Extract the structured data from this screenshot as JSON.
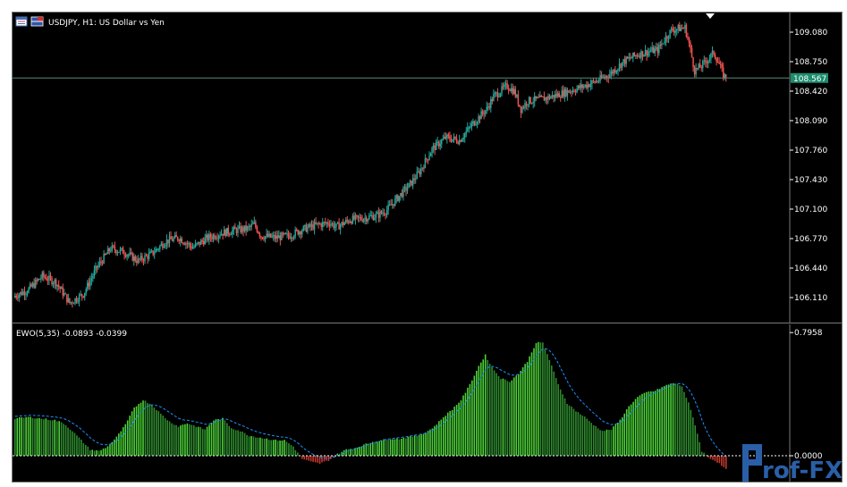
{
  "main_chart": {
    "symbol_label": "USDJPY, H1:  US Dollar vs Yen",
    "price_axis": [
      {
        "value": 109.08,
        "label": "109.080"
      },
      {
        "value": 108.75,
        "label": "108.750"
      },
      {
        "value": 108.42,
        "label": "108.420"
      },
      {
        "value": 108.09,
        "label": "108.090"
      },
      {
        "value": 107.76,
        "label": "107.760"
      },
      {
        "value": 107.43,
        "label": "107.430"
      },
      {
        "value": 107.1,
        "label": "107.100"
      },
      {
        "value": 106.77,
        "label": "106.770"
      },
      {
        "value": 106.44,
        "label": "106.440"
      },
      {
        "value": 106.11,
        "label": "106.110"
      }
    ],
    "price_range": [
      105.86,
      109.26
    ],
    "current_price": {
      "value": 108.567,
      "label": "108.567",
      "color": "#1e8c6e"
    },
    "bull_color": "#26a69a",
    "bear_color": "#ef5350",
    "close_anchors": [
      [
        0,
        106.13
      ],
      [
        10,
        106.2
      ],
      [
        20,
        106.35
      ],
      [
        30,
        106.28
      ],
      [
        40,
        106.05
      ],
      [
        50,
        106.15
      ],
      [
        60,
        106.45
      ],
      [
        70,
        106.66
      ],
      [
        80,
        106.62
      ],
      [
        90,
        106.52
      ],
      [
        100,
        106.6
      ],
      [
        110,
        106.74
      ],
      [
        120,
        106.78
      ],
      [
        130,
        106.67
      ],
      [
        140,
        106.77
      ],
      [
        150,
        106.83
      ],
      [
        160,
        106.86
      ],
      [
        170,
        106.88
      ],
      [
        175,
        106.93
      ],
      [
        180,
        106.8
      ],
      [
        190,
        106.78
      ],
      [
        200,
        106.8
      ],
      [
        210,
        106.87
      ],
      [
        220,
        106.92
      ],
      [
        230,
        106.95
      ],
      [
        235,
        106.9
      ],
      [
        245,
        106.98
      ],
      [
        255,
        107.0
      ],
      [
        265,
        107.03
      ],
      [
        272,
        107.09
      ],
      [
        280,
        107.23
      ],
      [
        288,
        107.36
      ],
      [
        296,
        107.52
      ],
      [
        305,
        107.77
      ],
      [
        315,
        107.9
      ],
      [
        325,
        107.87
      ],
      [
        335,
        108.06
      ],
      [
        345,
        108.22
      ],
      [
        350,
        108.36
      ],
      [
        355,
        108.42
      ],
      [
        360,
        108.48
      ],
      [
        365,
        108.42
      ],
      [
        370,
        108.22
      ],
      [
        375,
        108.31
      ],
      [
        385,
        108.33
      ],
      [
        395,
        108.37
      ],
      [
        405,
        108.42
      ],
      [
        415,
        108.47
      ],
      [
        425,
        108.53
      ],
      [
        435,
        108.61
      ],
      [
        445,
        108.75
      ],
      [
        455,
        108.83
      ],
      [
        465,
        108.87
      ],
      [
        470,
        108.88
      ],
      [
        475,
        109.0
      ],
      [
        480,
        109.1
      ],
      [
        485,
        109.12
      ],
      [
        490,
        109.13
      ],
      [
        493,
        108.95
      ],
      [
        497,
        108.65
      ],
      [
        502,
        108.7
      ],
      [
        507,
        108.78
      ],
      [
        511,
        108.85
      ],
      [
        515,
        108.72
      ],
      [
        518,
        108.6
      ],
      [
        520,
        108.567
      ]
    ]
  },
  "indicator": {
    "label": "EWO(5,35) -0.0893 -0.0399",
    "axis": [
      {
        "value": 0.7958,
        "label": "0.7958"
      },
      {
        "value": 0.0,
        "label": "0.0000"
      }
    ],
    "range": [
      -0.15,
      0.82
    ],
    "up_color": "#4cd137",
    "down_color": "#2e8b2e",
    "neg_color": "#c0392b",
    "signal_color": "#1e90ff",
    "anchors": [
      [
        0,
        0.24
      ],
      [
        6,
        0.25
      ],
      [
        12,
        0.24
      ],
      [
        18,
        0.23
      ],
      [
        22,
        0.21
      ],
      [
        26,
        0.16
      ],
      [
        30,
        0.1
      ],
      [
        34,
        0.04
      ],
      [
        38,
        0.03
      ],
      [
        42,
        0.06
      ],
      [
        46,
        0.12
      ],
      [
        50,
        0.2
      ],
      [
        54,
        0.31
      ],
      [
        58,
        0.36
      ],
      [
        62,
        0.33
      ],
      [
        66,
        0.27
      ],
      [
        70,
        0.22
      ],
      [
        74,
        0.19
      ],
      [
        78,
        0.21
      ],
      [
        82,
        0.19
      ],
      [
        86,
        0.17
      ],
      [
        90,
        0.23
      ],
      [
        94,
        0.24
      ],
      [
        98,
        0.18
      ],
      [
        102,
        0.16
      ],
      [
        106,
        0.13
      ],
      [
        110,
        0.12
      ],
      [
        114,
        0.11
      ],
      [
        118,
        0.1
      ],
      [
        122,
        0.1
      ],
      [
        126,
        0.06
      ],
      [
        128,
        0.02
      ],
      [
        130,
        -0.02
      ],
      [
        134,
        -0.04
      ],
      [
        138,
        -0.05
      ],
      [
        142,
        -0.03
      ],
      [
        146,
        0.01
      ],
      [
        150,
        0.04
      ],
      [
        154,
        0.05
      ],
      [
        158,
        0.07
      ],
      [
        162,
        0.09
      ],
      [
        166,
        0.1
      ],
      [
        170,
        0.11
      ],
      [
        174,
        0.11
      ],
      [
        178,
        0.12
      ],
      [
        182,
        0.13
      ],
      [
        186,
        0.15
      ],
      [
        190,
        0.19
      ],
      [
        194,
        0.25
      ],
      [
        198,
        0.3
      ],
      [
        202,
        0.36
      ],
      [
        206,
        0.46
      ],
      [
        210,
        0.58
      ],
      [
        213,
        0.65
      ],
      [
        216,
        0.57
      ],
      [
        220,
        0.5
      ],
      [
        224,
        0.48
      ],
      [
        228,
        0.53
      ],
      [
        232,
        0.61
      ],
      [
        236,
        0.73
      ],
      [
        239,
        0.73
      ],
      [
        242,
        0.62
      ],
      [
        246,
        0.46
      ],
      [
        250,
        0.34
      ],
      [
        254,
        0.29
      ],
      [
        258,
        0.25
      ],
      [
        262,
        0.2
      ],
      [
        266,
        0.16
      ],
      [
        270,
        0.17
      ],
      [
        274,
        0.23
      ],
      [
        278,
        0.32
      ],
      [
        282,
        0.38
      ],
      [
        286,
        0.41
      ],
      [
        290,
        0.42
      ],
      [
        294,
        0.45
      ],
      [
        298,
        0.47
      ],
      [
        302,
        0.45
      ],
      [
        305,
        0.34
      ],
      [
        308,
        0.2
      ],
      [
        311,
        0.03
      ],
      [
        314,
        -0.01
      ],
      [
        318,
        -0.04
      ],
      [
        322,
        -0.09
      ]
    ]
  },
  "watermark": {
    "text": "rof-FX",
    "icon": "p-logo-icon"
  },
  "toolbar_icons": [
    "chart-window-icon",
    "flag-icon"
  ]
}
